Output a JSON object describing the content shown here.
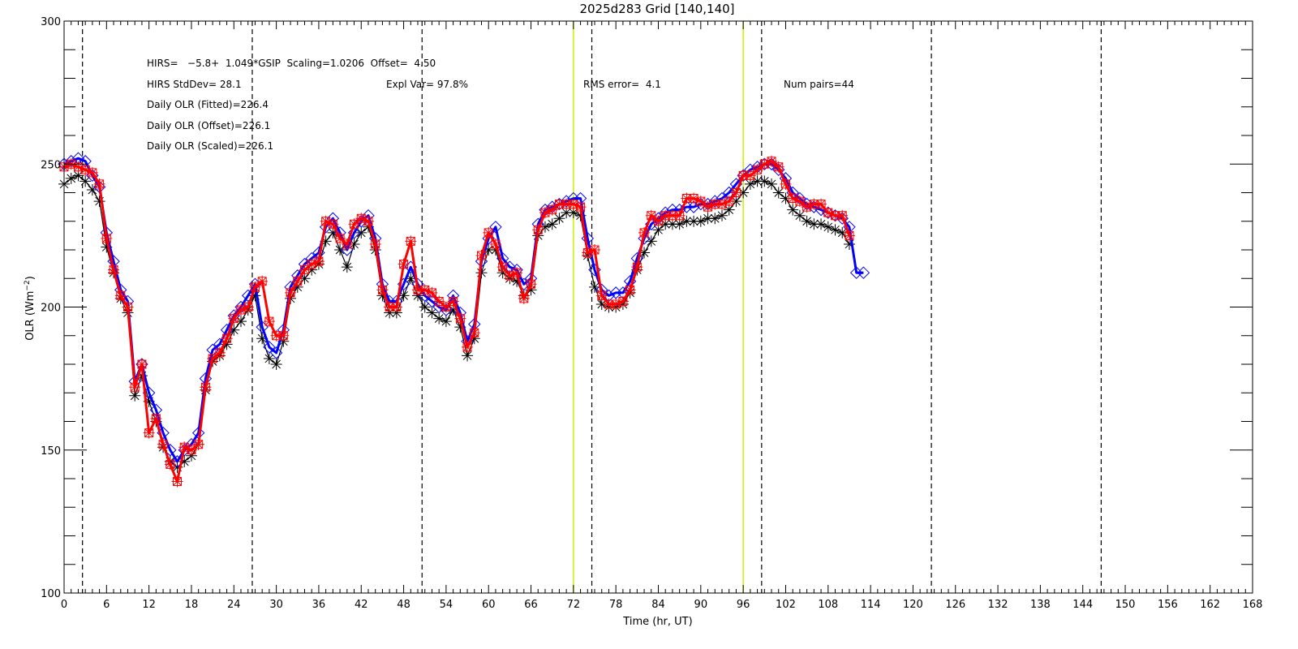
{
  "chart_data": {
    "type": "line",
    "title": "2025d283 Grid [140,140]",
    "xlabel": "Time (hr, UT)",
    "ylabel_main": "OLR (Wm",
    "ylabel_exp": "−2",
    "ylabel_close": ")",
    "xlim": [
      0,
      168
    ],
    "ylim": [
      100,
      300
    ],
    "xticks": [
      0,
      6,
      12,
      18,
      24,
      30,
      36,
      42,
      48,
      54,
      60,
      66,
      72,
      78,
      84,
      90,
      96,
      102,
      108,
      114,
      120,
      126,
      132,
      138,
      144,
      150,
      156,
      162,
      168
    ],
    "yticks": [
      100,
      150,
      200,
      250,
      300
    ],
    "grid": false,
    "vlines_dashed": [
      2.6,
      26.6,
      50.6,
      74.6,
      98.6,
      122.6,
      146.6
    ],
    "vlines_green": [
      72,
      96
    ],
    "annotations": {
      "line1": "HIRS=   −5.8+  1.049*GSIP  Scaling=1.0206  Offset=  4.50",
      "stddev": "HIRS StdDev= 28.1",
      "explvar": "Expl Var= 97.8%",
      "rms": "RMS error=  4.1",
      "numpairs": "Num pairs=44",
      "fitted": "Daily OLR (Fitted)=226.4",
      "offset": "Daily OLR (Offset)=226.1",
      "scaled": "Daily OLR (Scaled)=226.1"
    },
    "series": [
      {
        "color": "#000000",
        "marker": "asterisk",
        "x": [
          0,
          1,
          2,
          3,
          4,
          5,
          6,
          7,
          8,
          9,
          10,
          11,
          12,
          13,
          14,
          15,
          16,
          17,
          18,
          19,
          20,
          21,
          22,
          23,
          24,
          25,
          26,
          27,
          28,
          29,
          30,
          31,
          32,
          33,
          34,
          35,
          36,
          37,
          38,
          39,
          40,
          41,
          42,
          43,
          44,
          45,
          46,
          47,
          48,
          49,
          50,
          51,
          52,
          53,
          54,
          55,
          56,
          57,
          58,
          59,
          60,
          61,
          62,
          63,
          64,
          65,
          66,
          67,
          68,
          69,
          70,
          71,
          72,
          73,
          74,
          75,
          76,
          77,
          78,
          79,
          80,
          81,
          82,
          83,
          84,
          85,
          86,
          87,
          88,
          89,
          90,
          91,
          92,
          93,
          94,
          95,
          96,
          97,
          98,
          99,
          100,
          101,
          102,
          103,
          104,
          105,
          106,
          107,
          108,
          109,
          110,
          111
        ],
        "y": [
          243,
          245,
          246,
          244,
          241,
          237,
          221,
          212,
          203,
          198,
          169,
          176,
          167,
          160,
          151,
          146,
          144,
          146,
          148,
          152,
          171,
          181,
          183,
          187,
          192,
          195,
          199,
          204,
          189,
          182,
          180,
          188,
          203,
          207,
          210,
          213,
          215,
          223,
          226,
          220,
          214,
          222,
          226,
          228,
          220,
          204,
          198,
          198,
          204,
          210,
          204,
          200,
          198,
          196,
          195,
          199,
          193,
          183,
          189,
          212,
          220,
          220,
          212,
          210,
          209,
          204,
          206,
          225,
          228,
          229,
          231,
          233,
          233,
          232,
          218,
          207,
          201,
          200,
          200,
          201,
          205,
          213,
          219,
          223,
          227,
          229,
          229,
          229,
          230,
          230,
          230,
          231,
          231,
          232,
          234,
          237,
          240,
          243,
          244,
          244,
          243,
          240,
          238,
          234,
          232,
          230,
          229,
          229,
          228,
          227,
          226,
          222
        ]
      },
      {
        "color": "#0000ff",
        "marker": "diamond",
        "x": [
          0,
          1,
          2,
          3,
          4,
          5,
          6,
          7,
          8,
          9,
          10,
          11,
          12,
          13,
          14,
          15,
          16,
          17,
          18,
          19,
          20,
          21,
          22,
          23,
          24,
          25,
          26,
          27,
          28,
          29,
          30,
          31,
          32,
          33,
          34,
          35,
          36,
          37,
          38,
          39,
          40,
          41,
          42,
          43,
          44,
          45,
          46,
          47,
          48,
          49,
          50,
          51,
          52,
          53,
          54,
          55,
          56,
          57,
          58,
          59,
          60,
          61,
          62,
          63,
          64,
          65,
          66,
          67,
          68,
          69,
          70,
          71,
          72,
          73,
          74,
          75,
          76,
          77,
          78,
          79,
          80,
          81,
          82,
          83,
          84,
          85,
          86,
          87,
          88,
          89,
          90,
          91,
          92,
          93,
          94,
          95,
          96,
          97,
          98,
          99,
          100,
          101,
          102,
          103,
          104,
          105,
          106,
          107,
          108,
          109,
          110,
          111,
          112,
          113
        ],
        "y": [
          250,
          251,
          252,
          251,
          246,
          242,
          226,
          216,
          206,
          202,
          174,
          180,
          170,
          164,
          156,
          150,
          146,
          150,
          152,
          156,
          175,
          185,
          187,
          192,
          197,
          200,
          204,
          208,
          193,
          186,
          184,
          192,
          207,
          211,
          215,
          217,
          219,
          228,
          231,
          226,
          220,
          226,
          230,
          232,
          224,
          208,
          202,
          202,
          208,
          214,
          208,
          204,
          202,
          200,
          199,
          204,
          198,
          188,
          194,
          216,
          224,
          228,
          217,
          214,
          213,
          208,
          210,
          229,
          234,
          235,
          236,
          237,
          238,
          238,
          224,
          213,
          206,
          204,
          205,
          205,
          209,
          217,
          224,
          229,
          231,
          233,
          234,
          234,
          235,
          235,
          236,
          236,
          237,
          238,
          240,
          243,
          246,
          248,
          249,
          250,
          250,
          248,
          245,
          240,
          238,
          236,
          235,
          234,
          233,
          232,
          231,
          228,
          212,
          212
        ]
      },
      {
        "color": "#ff0000",
        "marker": "asterisk-boxed",
        "x": [
          0,
          1,
          2,
          3,
          4,
          5,
          6,
          7,
          8,
          9,
          10,
          11,
          12,
          13,
          14,
          15,
          16,
          17,
          18,
          19,
          20,
          21,
          22,
          23,
          24,
          25,
          26,
          27,
          28,
          29,
          30,
          31,
          32,
          33,
          34,
          35,
          36,
          37,
          38,
          39,
          40,
          41,
          42,
          43,
          44,
          45,
          46,
          47,
          48,
          49,
          50,
          51,
          52,
          53,
          54,
          55,
          56,
          57,
          58,
          59,
          60,
          61,
          62,
          63,
          64,
          65,
          66,
          67,
          68,
          69,
          70,
          71,
          72,
          73,
          74,
          75,
          76,
          77,
          78,
          79,
          80,
          81,
          82,
          83,
          84,
          85,
          86,
          87,
          88,
          89,
          90,
          91,
          92,
          93,
          94,
          95,
          96,
          97,
          98,
          99,
          100,
          101,
          102,
          103,
          104,
          105,
          106,
          107,
          108,
          109,
          110,
          111
        ],
        "y": [
          249,
          250,
          249,
          248,
          247,
          243,
          224,
          213,
          204,
          200,
          172,
          180,
          156,
          161,
          152,
          145,
          139,
          151,
          150,
          152,
          172,
          182,
          184,
          189,
          196,
          199,
          200,
          207,
          209,
          195,
          190,
          190,
          205,
          209,
          213,
          215,
          216,
          230,
          229,
          224,
          222,
          229,
          231,
          230,
          222,
          206,
          200,
          200,
          215,
          223,
          206,
          206,
          205,
          202,
          200,
          202,
          196,
          186,
          191,
          218,
          226,
          222,
          214,
          211,
          212,
          203,
          208,
          227,
          233,
          234,
          236,
          236,
          236,
          235,
          219,
          220,
          204,
          201,
          201,
          202,
          206,
          214,
          226,
          232,
          230,
          232,
          232,
          232,
          238,
          238,
          237,
          235,
          236,
          236,
          237,
          240,
          246,
          246,
          248,
          250,
          251,
          249,
          243,
          238,
          237,
          235,
          236,
          236,
          233,
          232,
          232,
          225
        ]
      }
    ]
  }
}
